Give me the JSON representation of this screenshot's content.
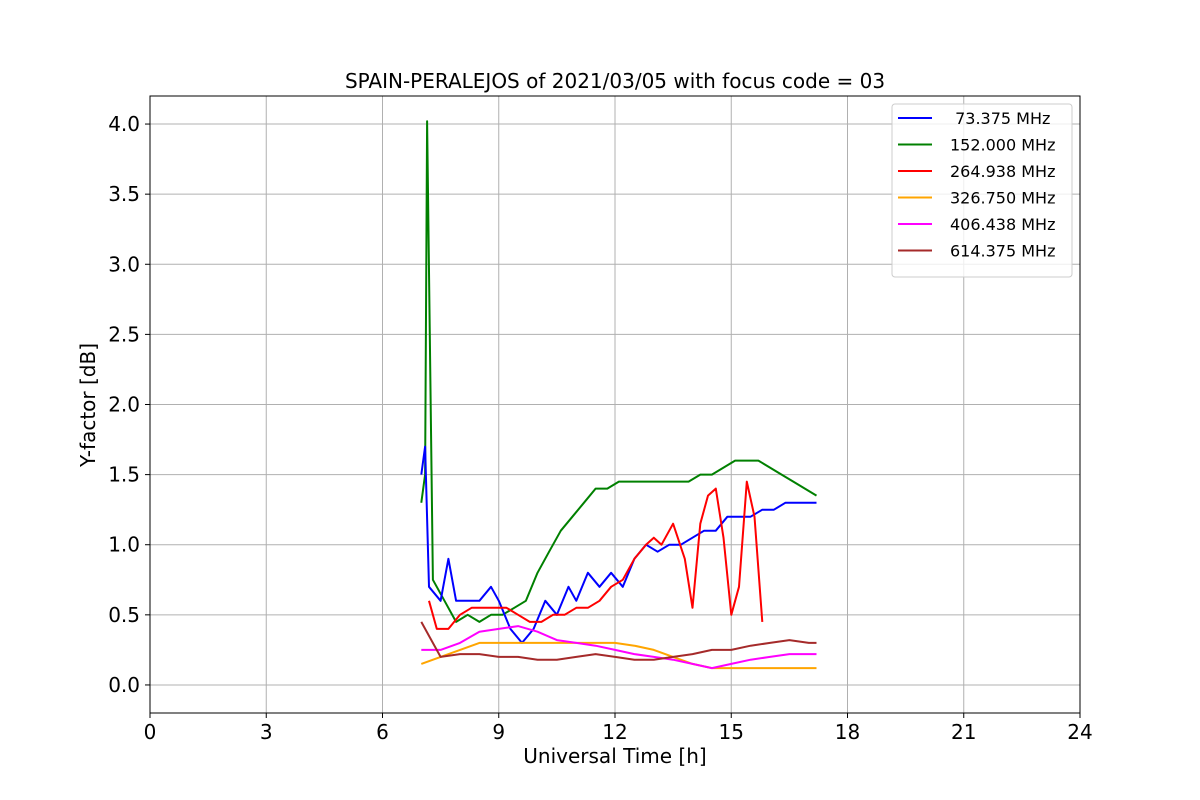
{
  "chart_data": {
    "type": "line",
    "title": "SPAIN-PERALEJOS of 2021/03/05 with focus code = 03",
    "xlabel": "Universal Time [h]",
    "ylabel": "Y-factor [dB]",
    "xlim": [
      0,
      24
    ],
    "ylim": [
      -0.2,
      4.2
    ],
    "xticks": [
      0,
      3,
      6,
      9,
      12,
      15,
      18,
      21,
      24
    ],
    "xtick_labels": [
      "0",
      "3",
      "6",
      "9",
      "12",
      "15",
      "18",
      "21",
      "24"
    ],
    "yticks": [
      0.0,
      0.5,
      1.0,
      1.5,
      2.0,
      2.5,
      3.0,
      3.5,
      4.0
    ],
    "ytick_labels": [
      "0.0",
      "0.5",
      "1.0",
      "1.5",
      "2.0",
      "2.5",
      "3.0",
      "3.5",
      "4.0"
    ],
    "grid": true,
    "legend_position": "top-right",
    "series": [
      {
        "name": " 73.375 MHz",
        "color": "#0000ff",
        "x": [
          7.0,
          7.1,
          7.2,
          7.5,
          7.7,
          7.9,
          8.2,
          8.5,
          8.8,
          9.0,
          9.3,
          9.6,
          9.9,
          10.2,
          10.5,
          10.8,
          11.0,
          11.3,
          11.6,
          11.9,
          12.2,
          12.5,
          12.8,
          13.1,
          13.4,
          13.7,
          14.0,
          14.3,
          14.6,
          14.9,
          15.2,
          15.5,
          15.8,
          16.1,
          16.4,
          16.7,
          17.0,
          17.2
        ],
        "y": [
          1.5,
          1.7,
          0.7,
          0.6,
          0.9,
          0.6,
          0.6,
          0.6,
          0.7,
          0.6,
          0.4,
          0.3,
          0.4,
          0.6,
          0.5,
          0.7,
          0.6,
          0.8,
          0.7,
          0.8,
          0.7,
          0.9,
          1.0,
          0.95,
          1.0,
          1.0,
          1.05,
          1.1,
          1.1,
          1.2,
          1.2,
          1.2,
          1.25,
          1.25,
          1.3,
          1.3,
          1.3,
          1.3
        ]
      },
      {
        "name": "152.000 MHz",
        "color": "#008000",
        "x": [
          7.0,
          7.1,
          7.15,
          7.3,
          7.6,
          7.9,
          8.2,
          8.5,
          8.8,
          9.1,
          9.4,
          9.7,
          10.0,
          10.3,
          10.6,
          10.9,
          11.2,
          11.5,
          11.8,
          12.1,
          12.4,
          12.7,
          13.0,
          13.3,
          13.6,
          13.9,
          14.2,
          14.5,
          14.8,
          15.1,
          15.4,
          15.7,
          16.0,
          16.3,
          16.6,
          16.9,
          17.2
        ],
        "y": [
          1.3,
          1.5,
          4.02,
          0.75,
          0.6,
          0.45,
          0.5,
          0.45,
          0.5,
          0.5,
          0.55,
          0.6,
          0.8,
          0.95,
          1.1,
          1.2,
          1.3,
          1.4,
          1.4,
          1.45,
          1.45,
          1.45,
          1.45,
          1.45,
          1.45,
          1.45,
          1.5,
          1.5,
          1.55,
          1.6,
          1.6,
          1.6,
          1.55,
          1.5,
          1.45,
          1.4,
          1.35
        ]
      },
      {
        "name": "264.938 MHz",
        "color": "#ff0000",
        "x": [
          7.2,
          7.4,
          7.7,
          8.0,
          8.3,
          8.6,
          8.9,
          9.2,
          9.5,
          9.8,
          10.1,
          10.4,
          10.7,
          11.0,
          11.3,
          11.6,
          11.9,
          12.2,
          12.5,
          12.8,
          13.0,
          13.2,
          13.5,
          13.8,
          14.0,
          14.2,
          14.4,
          14.6,
          14.8,
          15.0,
          15.2,
          15.4,
          15.6,
          15.8
        ],
        "y": [
          0.6,
          0.4,
          0.4,
          0.5,
          0.55,
          0.55,
          0.55,
          0.55,
          0.5,
          0.45,
          0.45,
          0.5,
          0.5,
          0.55,
          0.55,
          0.6,
          0.7,
          0.75,
          0.9,
          1.0,
          1.05,
          1.0,
          1.15,
          0.9,
          0.55,
          1.15,
          1.35,
          1.4,
          1.05,
          0.5,
          0.7,
          1.45,
          1.2,
          0.45
        ]
      },
      {
        "name": "326.750 MHz",
        "color": "#ffa500",
        "x": [
          7.0,
          7.5,
          8.0,
          8.5,
          9.0,
          9.5,
          10.0,
          10.5,
          11.0,
          11.5,
          12.0,
          12.5,
          13.0,
          13.5,
          14.0,
          14.5,
          15.0,
          15.5,
          16.0,
          16.5,
          17.0,
          17.2
        ],
        "y": [
          0.15,
          0.2,
          0.25,
          0.3,
          0.3,
          0.3,
          0.3,
          0.3,
          0.3,
          0.3,
          0.3,
          0.28,
          0.25,
          0.2,
          0.15,
          0.12,
          0.12,
          0.12,
          0.12,
          0.12,
          0.12,
          0.12
        ]
      },
      {
        "name": "406.438 MHz",
        "color": "#ff00ff",
        "x": [
          7.0,
          7.5,
          8.0,
          8.5,
          9.0,
          9.5,
          10.0,
          10.5,
          11.0,
          11.5,
          12.0,
          12.5,
          13.0,
          13.5,
          14.0,
          14.5,
          15.0,
          15.5,
          16.0,
          16.5,
          17.0,
          17.2
        ],
        "y": [
          0.25,
          0.25,
          0.3,
          0.38,
          0.4,
          0.42,
          0.38,
          0.32,
          0.3,
          0.28,
          0.25,
          0.22,
          0.2,
          0.18,
          0.15,
          0.12,
          0.15,
          0.18,
          0.2,
          0.22,
          0.22,
          0.22
        ]
      },
      {
        "name": "614.375 MHz",
        "color": "#a52a2a",
        "x": [
          7.0,
          7.5,
          8.0,
          8.5,
          9.0,
          9.5,
          10.0,
          10.5,
          11.0,
          11.5,
          12.0,
          12.5,
          13.0,
          13.5,
          14.0,
          14.5,
          15.0,
          15.5,
          16.0,
          16.5,
          17.0,
          17.2
        ],
        "y": [
          0.45,
          0.2,
          0.22,
          0.22,
          0.2,
          0.2,
          0.18,
          0.18,
          0.2,
          0.22,
          0.2,
          0.18,
          0.18,
          0.2,
          0.22,
          0.25,
          0.25,
          0.28,
          0.3,
          0.32,
          0.3,
          0.3
        ]
      }
    ]
  }
}
